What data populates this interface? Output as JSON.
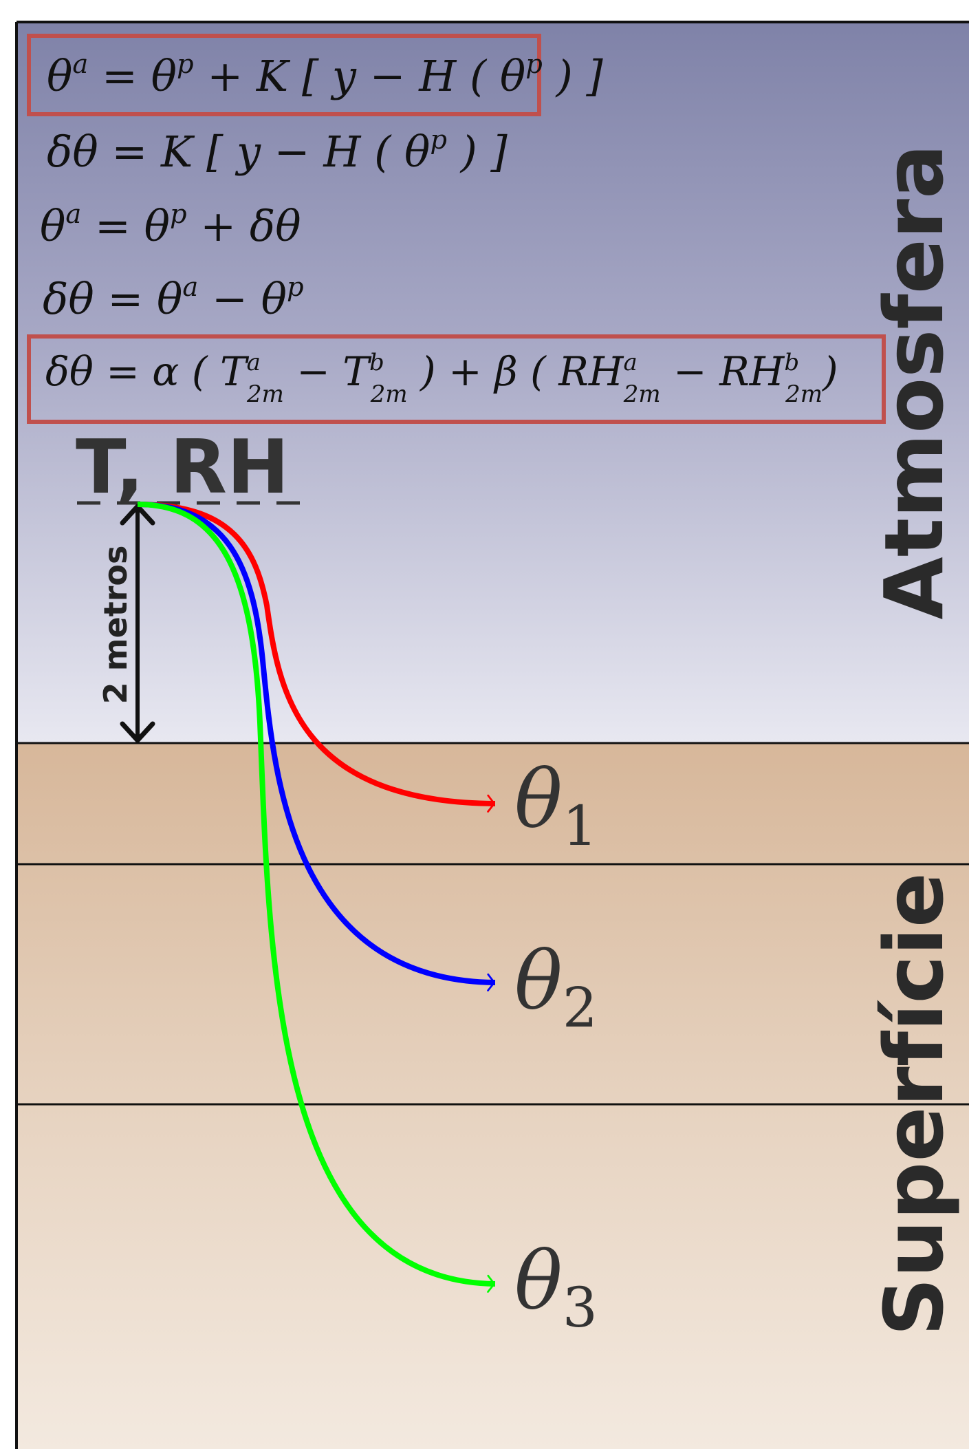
{
  "equations": {
    "eq1": "θ^a = θ^p + K [ y − H ( θ^p ) ]",
    "eq2": "δθ = K [ y − H ( θ^p ) ]",
    "eq3": "θ^a = θ^p + δθ",
    "eq4": "δθ = θ^a − θ^p",
    "eq5": "δθ = α ( T^a_2m − T^b_2m ) + β ( RH^a_2m − RH^b_2m )"
  },
  "labels": {
    "t_rh": "T, RH",
    "two_meters": "2 metros",
    "atmosphere": "Atmosfera",
    "surface": "Superfície"
  },
  "layers": [
    {
      "name": "θ",
      "sub": "1"
    },
    {
      "name": "θ",
      "sub": "2"
    },
    {
      "name": "θ",
      "sub": "3"
    }
  ],
  "colors": {
    "box_border": "#c0504d",
    "curve_red": "#ff0000",
    "curve_blue": "#0000ff",
    "curve_green": "#00ff00",
    "sky_top": "#8083a8",
    "sky_bottom": "#e6e6f0",
    "soil_top": "#d8b99c",
    "soil_bottom": "#f2e8de"
  }
}
